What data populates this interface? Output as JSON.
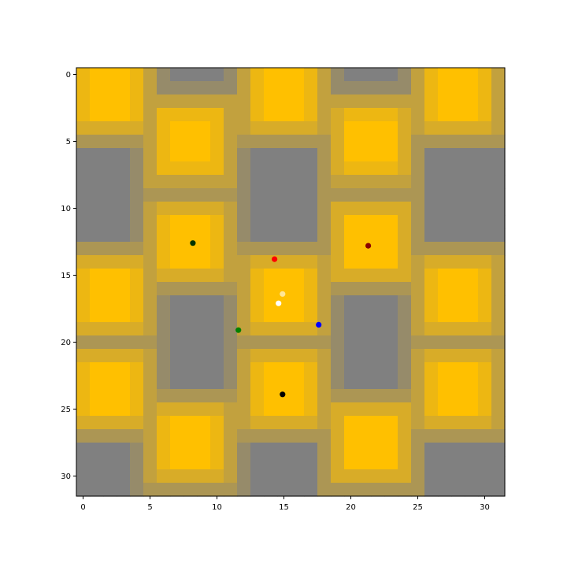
{
  "chart_data": {
    "type": "heatmap",
    "title": "",
    "xlabel": "",
    "ylabel": "",
    "grid_size": 32,
    "xlim": [
      -0.5,
      31.5
    ],
    "ylim": [
      31.5,
      -0.5
    ],
    "x_ticks": [
      0,
      5,
      10,
      15,
      20,
      25,
      30
    ],
    "y_ticks": [
      0,
      5,
      10,
      15,
      20,
      25,
      30
    ],
    "x_tick_labels": [
      "0",
      "5",
      "10",
      "15",
      "20",
      "25",
      "30"
    ],
    "y_tick_labels": [
      "0",
      "5",
      "10",
      "15",
      "20",
      "25",
      "30"
    ],
    "grid": false,
    "colormap": {
      "low": "#808080",
      "high": "#ffc000"
    },
    "gold_centers": [
      {
        "x": 2,
        "y": 1.5
      },
      {
        "x": 15,
        "y": 1.5
      },
      {
        "x": 28,
        "y": 1.5
      },
      {
        "x": 8,
        "y": 5
      },
      {
        "x": 21.5,
        "y": 5
      },
      {
        "x": 8,
        "y": 12.5
      },
      {
        "x": 21.5,
        "y": 12.5
      },
      {
        "x": 2,
        "y": 16.5
      },
      {
        "x": 15,
        "y": 16.5
      },
      {
        "x": 28,
        "y": 16.5
      },
      {
        "x": 2,
        "y": 23.5
      },
      {
        "x": 15,
        "y": 23.5
      },
      {
        "x": 28,
        "y": 23.5
      },
      {
        "x": 8,
        "y": 27.5
      },
      {
        "x": 21.5,
        "y": 27.5
      }
    ],
    "points": [
      {
        "x": 8.2,
        "y": 12.6,
        "color": "#003300"
      },
      {
        "x": 21.3,
        "y": 12.8,
        "color": "#8b0000"
      },
      {
        "x": 14.3,
        "y": 13.8,
        "color": "#ff0000"
      },
      {
        "x": 14.9,
        "y": 16.4,
        "color": "#ffe699"
      },
      {
        "x": 14.6,
        "y": 17.1,
        "color": "#ffffff"
      },
      {
        "x": 17.6,
        "y": 18.7,
        "color": "#0000ff"
      },
      {
        "x": 11.6,
        "y": 19.1,
        "color": "#008000"
      },
      {
        "x": 14.9,
        "y": 23.9,
        "color": "#000000"
      }
    ]
  }
}
